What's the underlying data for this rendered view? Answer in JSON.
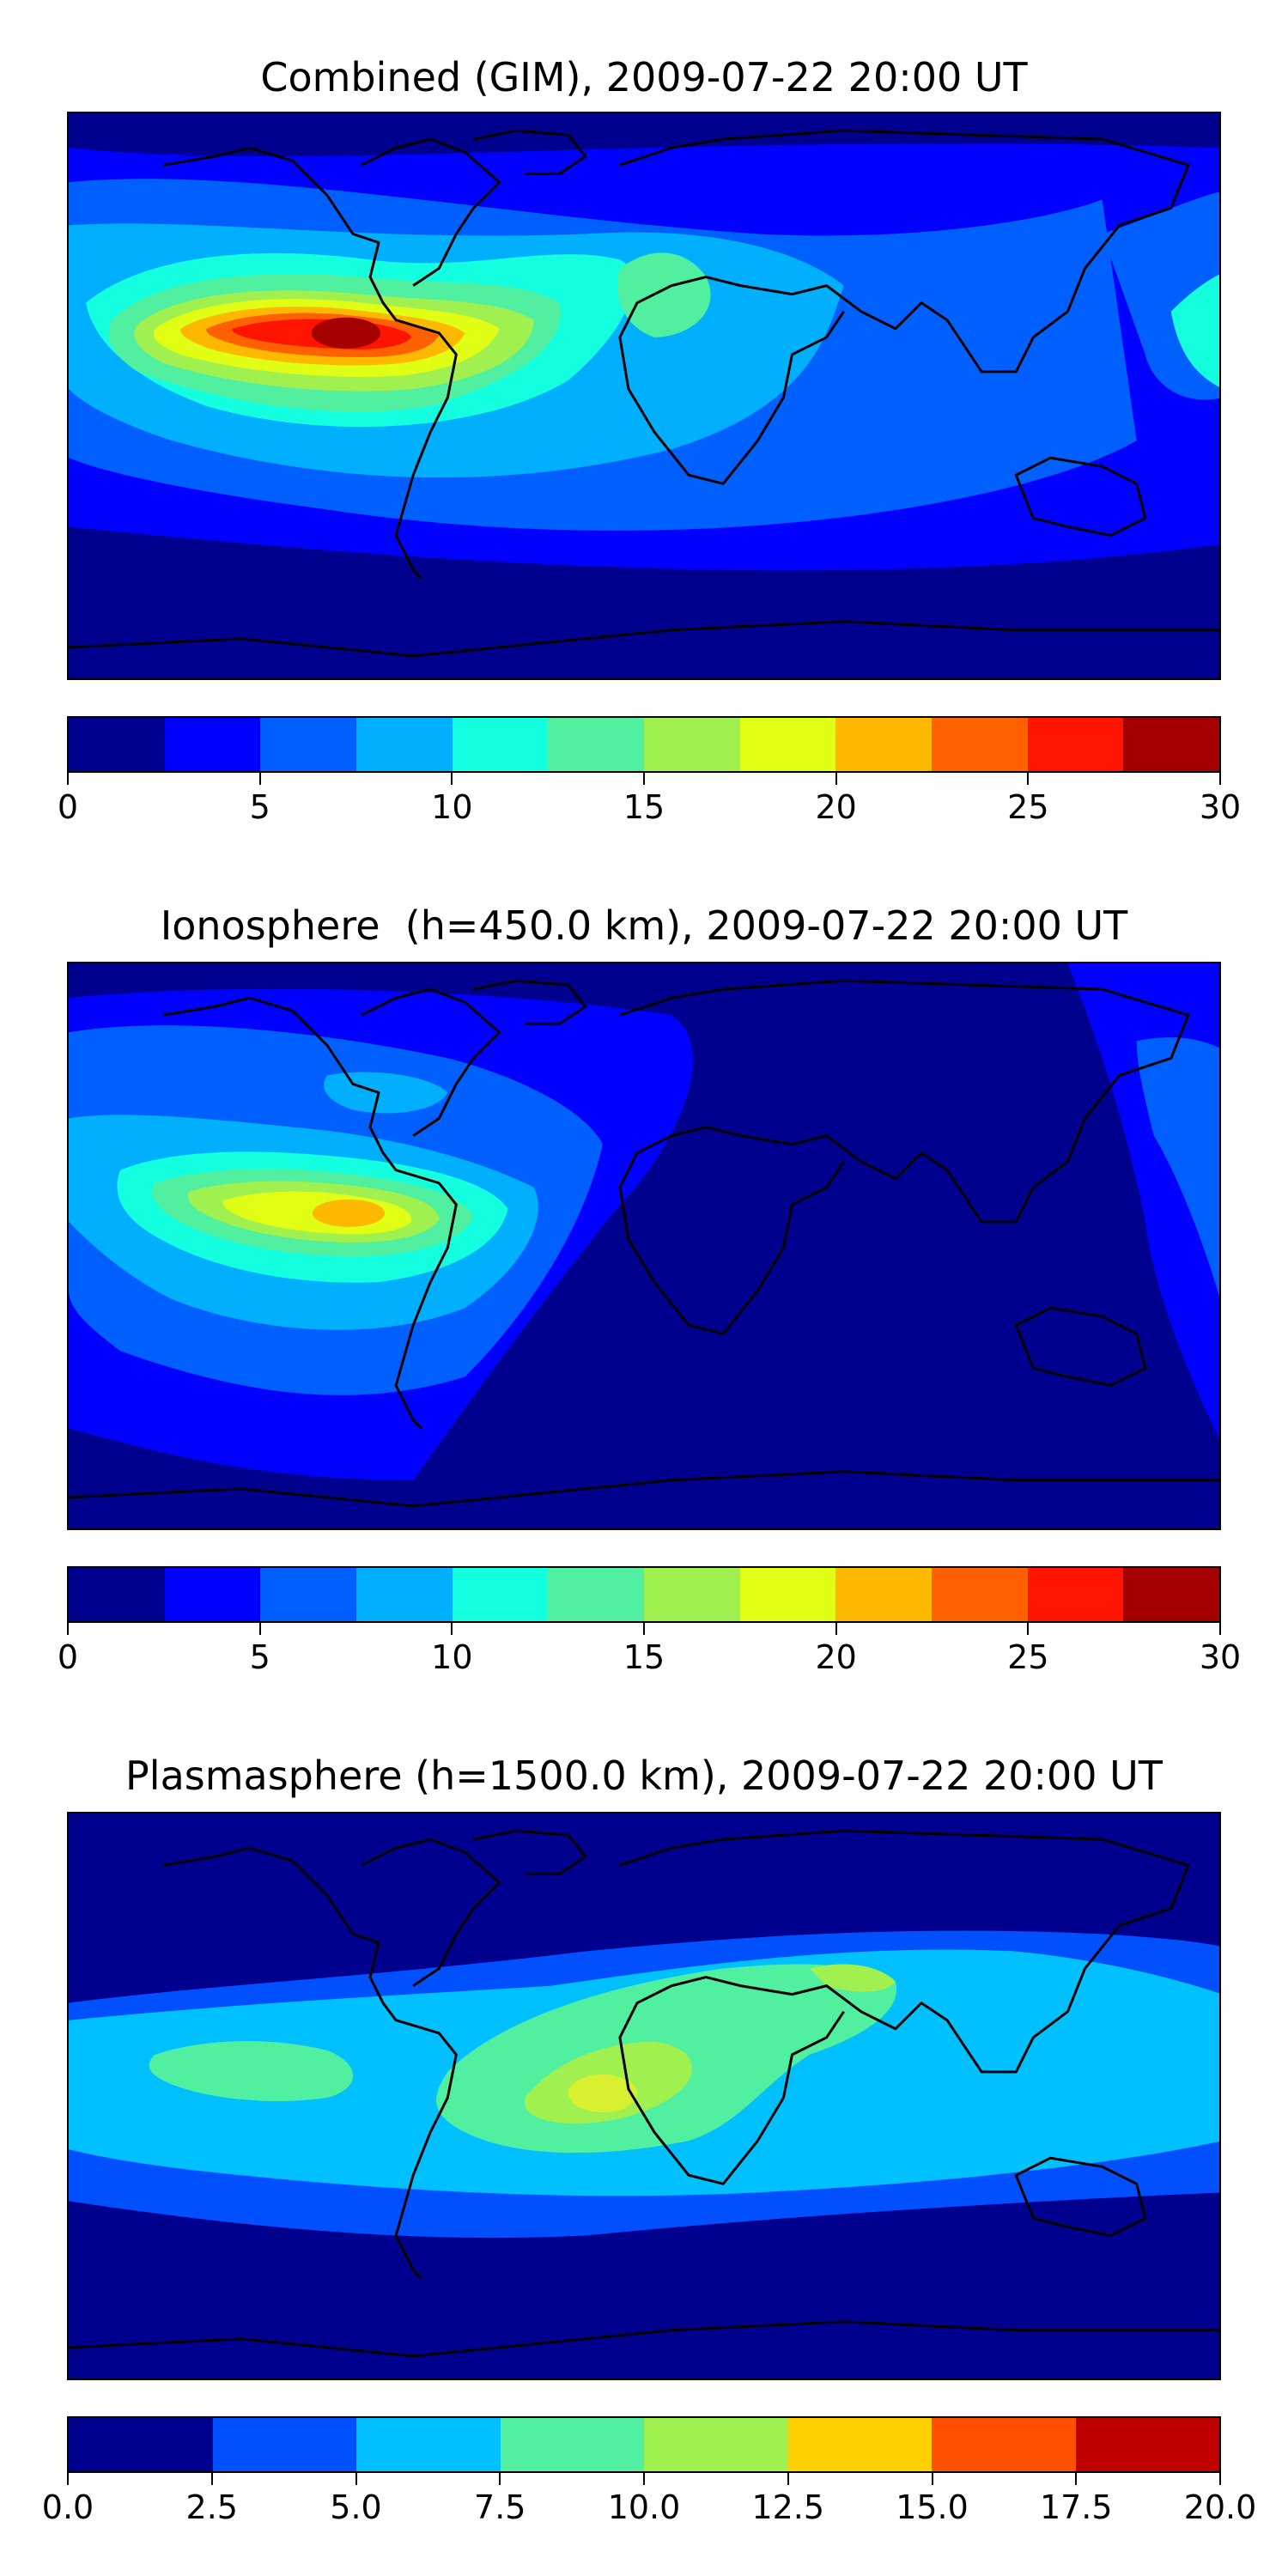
{
  "panels": [
    {
      "title": "Combined (GIM), 2009-07-22 20:00 UT",
      "colorbar": {
        "ticks": [
          "0",
          "5",
          "10",
          "15",
          "20",
          "25",
          "30"
        ],
        "range": [
          0,
          30
        ],
        "colors": [
          "#00008f",
          "#0000ff",
          "#0060ff",
          "#00b0ff",
          "#14ffe0",
          "#50f0a0",
          "#a0f050",
          "#e0ff14",
          "#ffb800",
          "#ff6000",
          "#ff1400",
          "#a40000"
        ]
      }
    },
    {
      "title": "Ionosphere  (h=450.0 km), 2009-07-22 20:00 UT",
      "colorbar": {
        "ticks": [
          "0",
          "5",
          "10",
          "15",
          "20",
          "25",
          "30"
        ],
        "range": [
          0,
          30
        ],
        "colors": [
          "#00008f",
          "#0000ff",
          "#0060ff",
          "#00b0ff",
          "#14ffe0",
          "#50f0a0",
          "#a0f050",
          "#e0ff14",
          "#ffb800",
          "#ff6000",
          "#ff1400",
          "#a40000"
        ]
      }
    },
    {
      "title": "Plasmasphere (h=1500.0 km), 2009-07-22 20:00 UT",
      "colorbar": {
        "ticks": [
          "0.0",
          "2.5",
          "5.0",
          "7.5",
          "10.0",
          "12.5",
          "15.0",
          "17.5",
          "20.0"
        ],
        "range": [
          0,
          20
        ],
        "colors": [
          "#00008f",
          "#0050ff",
          "#00c0ff",
          "#50f0a0",
          "#a0f050",
          "#ffd000",
          "#ff5000",
          "#c00000"
        ]
      }
    }
  ]
}
